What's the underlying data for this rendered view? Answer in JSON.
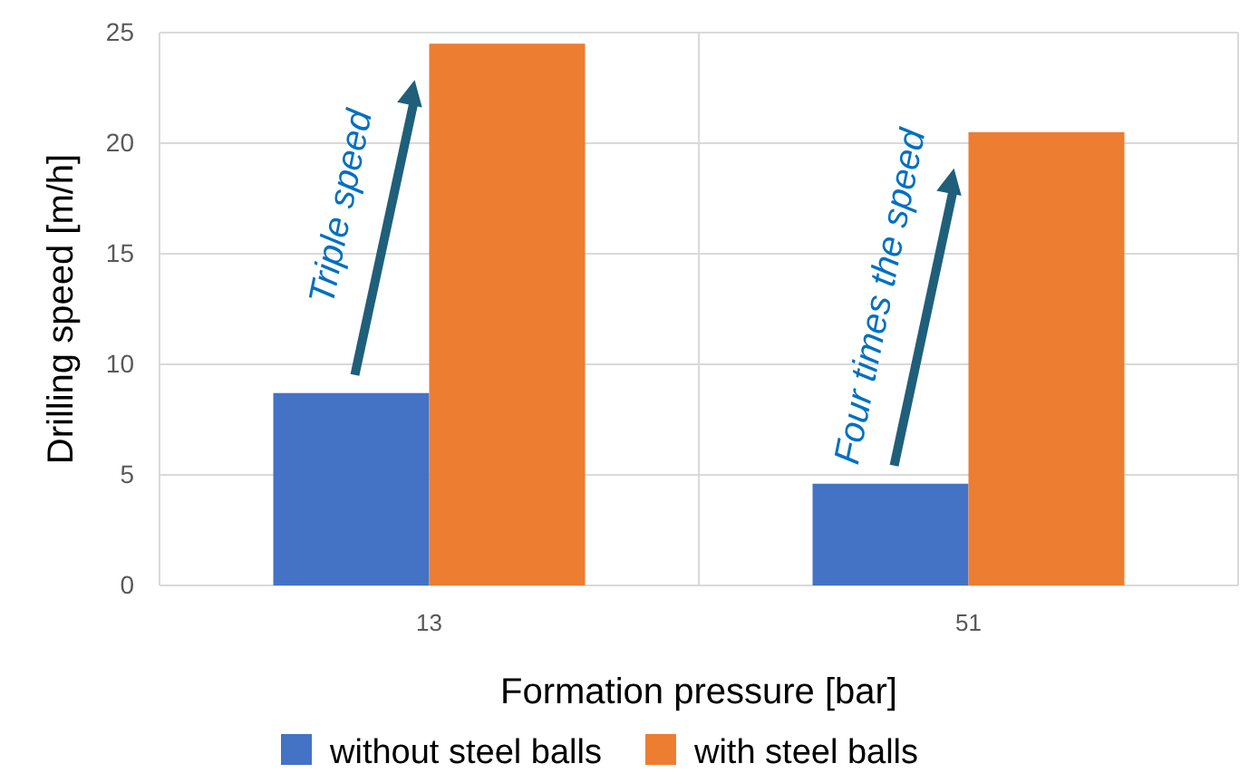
{
  "chart_data": {
    "type": "bar",
    "xlabel": "Formation pressure [bar]",
    "ylabel": "Drilling speed [m/h]",
    "categories": [
      "13",
      "51"
    ],
    "series": [
      {
        "name": "without steel balls",
        "color": "#4472c4",
        "values": [
          8.7,
          4.6
        ]
      },
      {
        "name": "with steel balls",
        "color": "#ed7d31",
        "values": [
          24.5,
          20.5
        ]
      }
    ],
    "ylim": [
      0,
      25
    ],
    "yticks": [
      0,
      5,
      10,
      15,
      20,
      25
    ],
    "grid": true,
    "legend": "bottom",
    "annotations": [
      "Triple speed",
      "Four times the speed"
    ]
  }
}
